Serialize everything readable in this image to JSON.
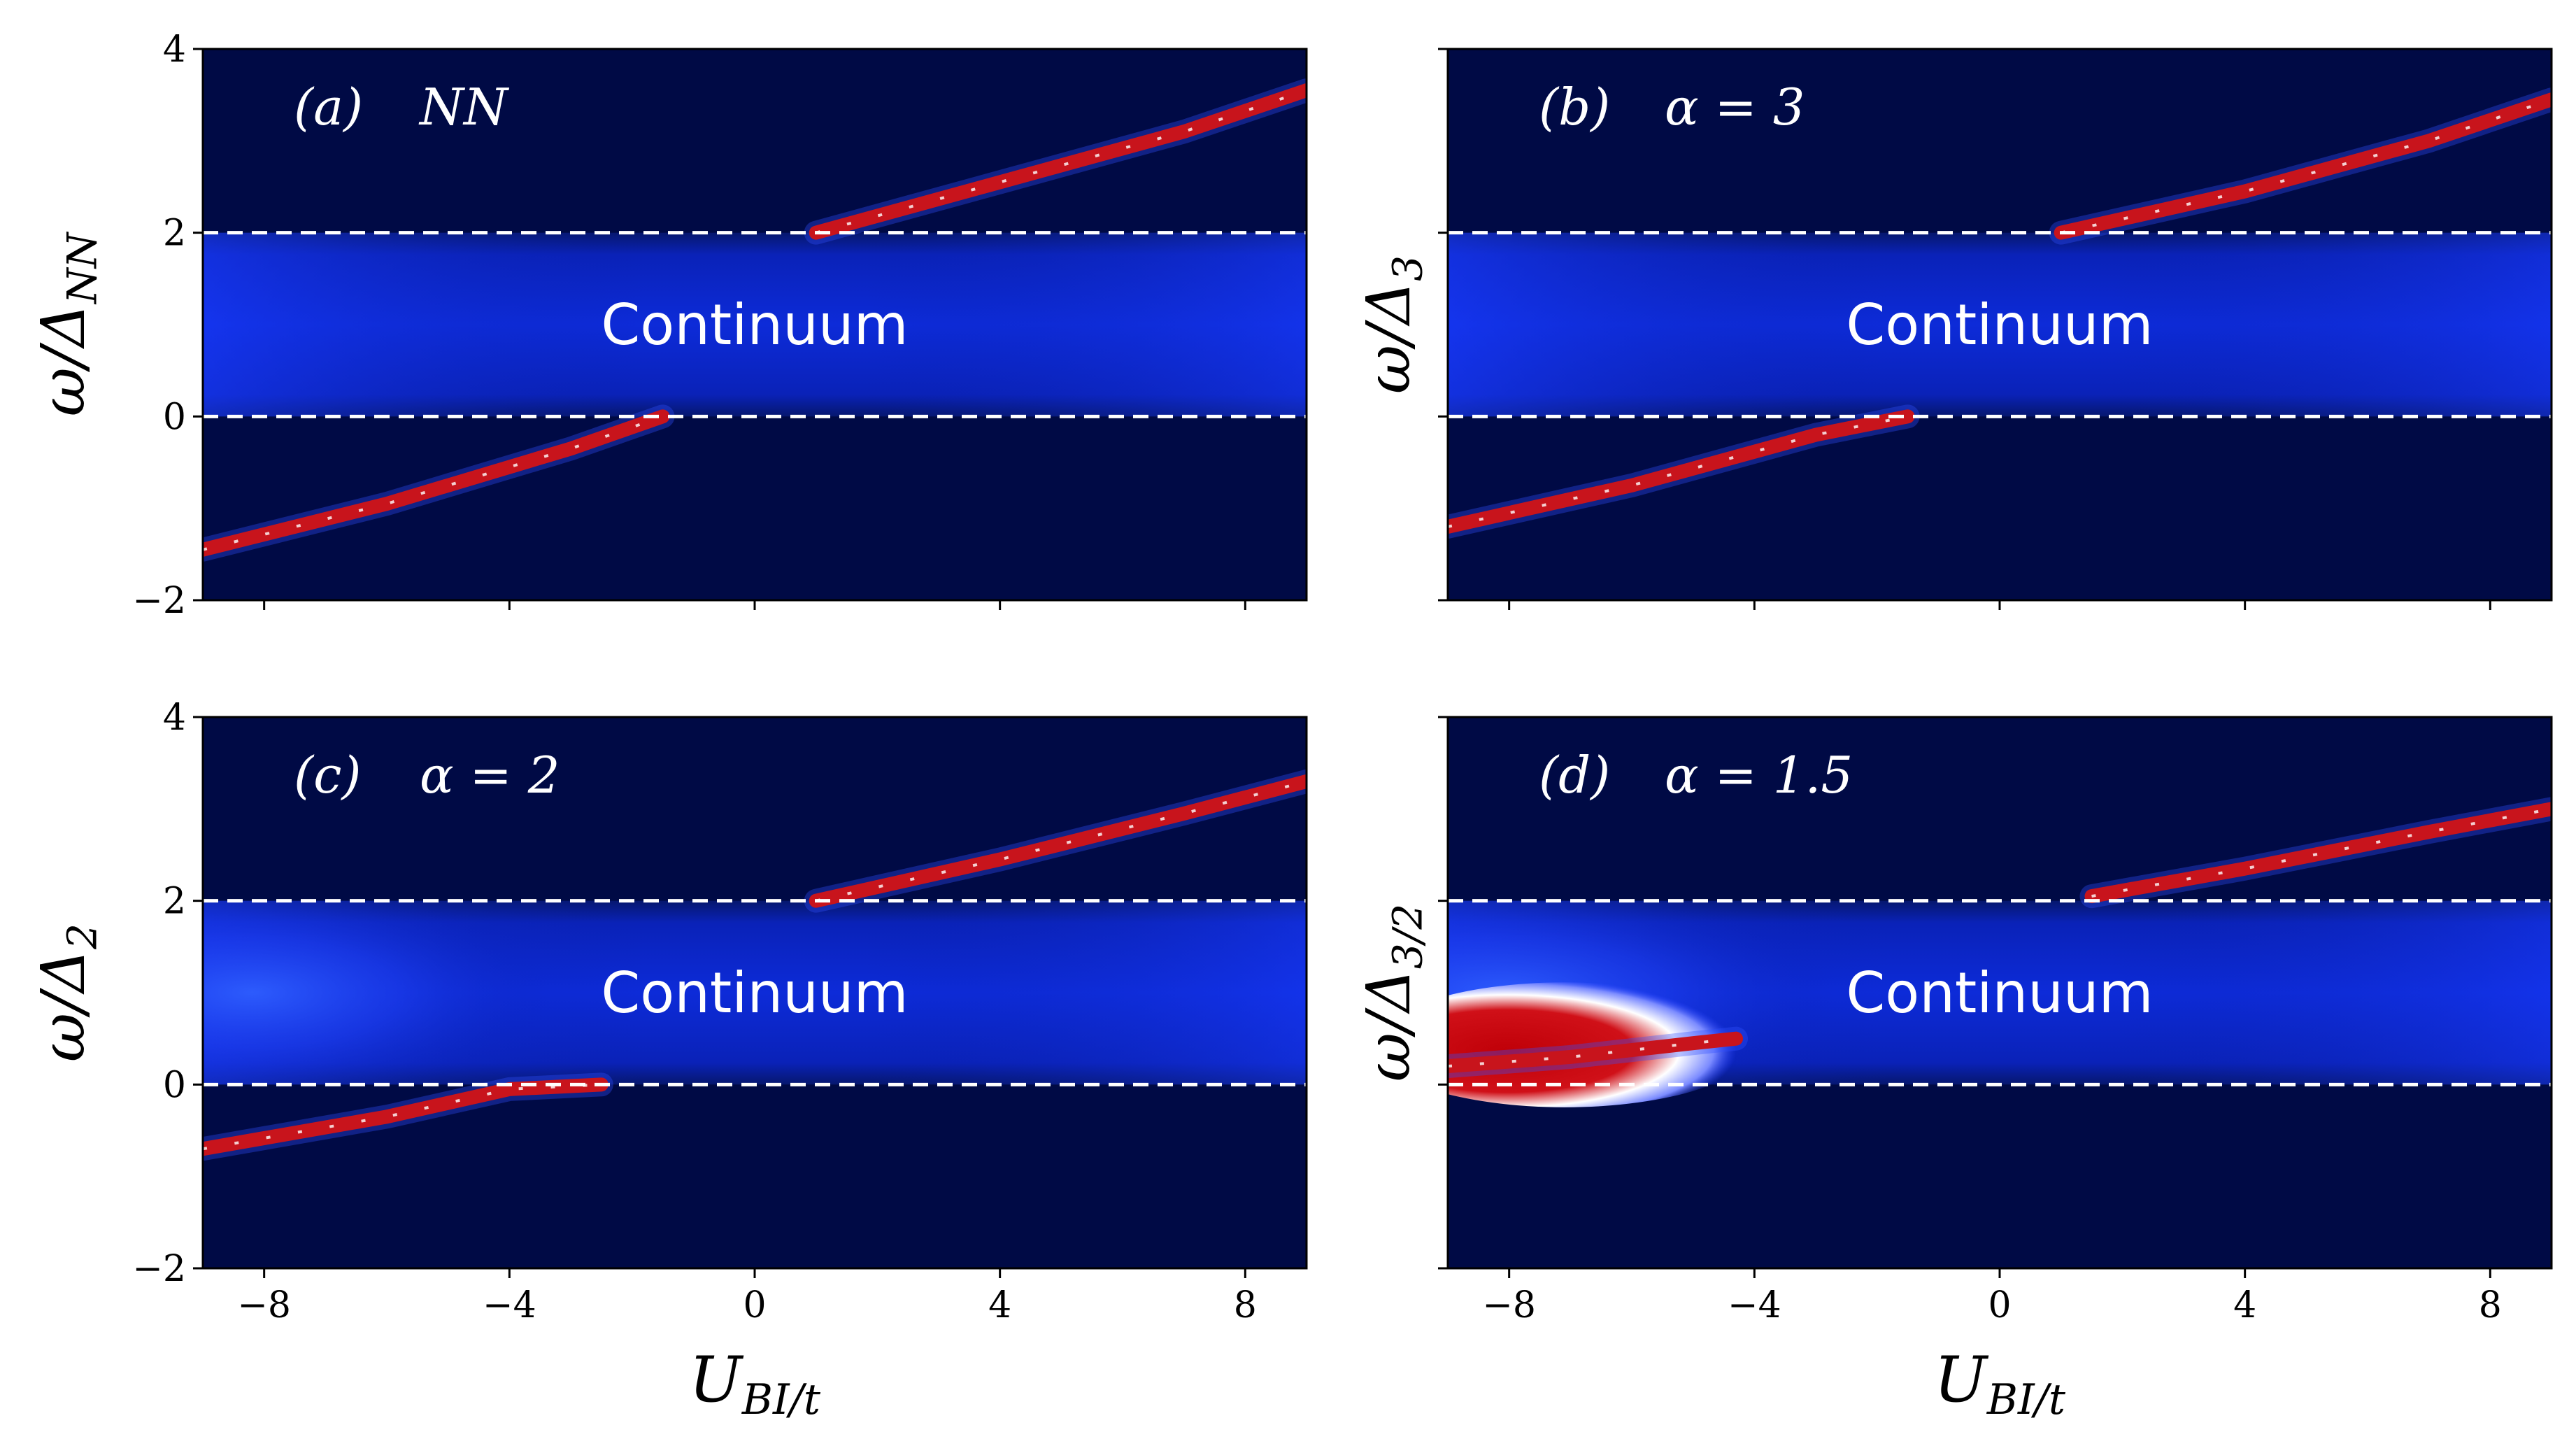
{
  "chart_data": [
    {
      "type": "heatmap",
      "panel_label": "(a)",
      "annotation": "NN",
      "ylabel": "ω/Δ_NN",
      "xlabel": "",
      "region_label": "Continuum",
      "xlim": [
        -9,
        9
      ],
      "ylim": [
        -2,
        4
      ],
      "xticks": [
        -8,
        -4,
        0,
        4,
        8
      ],
      "yticks": [
        -2,
        0,
        2,
        4
      ],
      "hlines": [
        0,
        2
      ],
      "lower_branch": {
        "x": [
          -9,
          -6,
          -3,
          -1.5
        ],
        "y": [
          -1.45,
          -0.95,
          -0.35,
          0.0
        ]
      },
      "upper_branch": {
        "x": [
          1,
          4,
          7,
          9
        ],
        "y": [
          2.0,
          2.55,
          3.1,
          3.55
        ]
      }
    },
    {
      "type": "heatmap",
      "panel_label": "(b)",
      "annotation": "α = 3",
      "ylabel": "ω/Δ_3",
      "xlabel": "",
      "region_label": "Continuum",
      "xlim": [
        -9,
        9
      ],
      "ylim": [
        -2,
        4
      ],
      "xticks": [
        -8,
        -4,
        0,
        4,
        8
      ],
      "yticks": [
        -2,
        0,
        2,
        4
      ],
      "hlines": [
        0,
        2
      ],
      "lower_branch": {
        "x": [
          -9,
          -6,
          -3,
          -1.5
        ],
        "y": [
          -1.2,
          -0.75,
          -0.2,
          0.0
        ]
      },
      "upper_branch": {
        "x": [
          1,
          4,
          7,
          9
        ],
        "y": [
          2.0,
          2.45,
          3.0,
          3.45
        ]
      }
    },
    {
      "type": "heatmap",
      "panel_label": "(c)",
      "annotation": "α = 2",
      "ylabel": "ω/Δ_2",
      "xlabel": "U_BI/t",
      "region_label": "Continuum",
      "xlim": [
        -9,
        9
      ],
      "ylim": [
        -2,
        4
      ],
      "xticks": [
        -8,
        -4,
        0,
        4,
        8
      ],
      "yticks": [
        -2,
        0,
        2,
        4
      ],
      "hlines": [
        0,
        2
      ],
      "lower_branch": {
        "x": [
          -9,
          -6,
          -4,
          -2.5
        ],
        "y": [
          -0.7,
          -0.35,
          -0.05,
          0.0
        ]
      },
      "upper_branch": {
        "x": [
          1,
          4,
          7,
          9
        ],
        "y": [
          2.0,
          2.45,
          2.95,
          3.3
        ]
      },
      "bright_spot": null
    },
    {
      "type": "heatmap",
      "panel_label": "(d)",
      "annotation": "α = 1.5",
      "ylabel": "ω/Δ_3/2",
      "xlabel": "U_BI/t",
      "region_label": "Continuum",
      "xlim": [
        -9,
        9
      ],
      "ylim": [
        -2,
        4
      ],
      "xticks": [
        -8,
        -4,
        0,
        4,
        8
      ],
      "yticks": [
        -2,
        0,
        2,
        4
      ],
      "hlines": [
        0,
        2
      ],
      "lower_branch": {
        "x": [
          -9,
          -7,
          -5,
          -4.3
        ],
        "y": [
          0.2,
          0.3,
          0.45,
          0.5
        ]
      },
      "upper_branch": {
        "x": [
          1.5,
          4,
          7,
          9
        ],
        "y": [
          2.05,
          2.35,
          2.75,
          3.0
        ]
      },
      "bright_spot": {
        "x": [
          -9,
          -4.5
        ],
        "y": [
          0.05,
          0.9
        ]
      }
    }
  ],
  "colors": {
    "background": "#000a45",
    "continuum": "#0a2ad8",
    "branch": "#c8141c",
    "highlight": "#ffffff",
    "dashed": "#ffffff"
  }
}
